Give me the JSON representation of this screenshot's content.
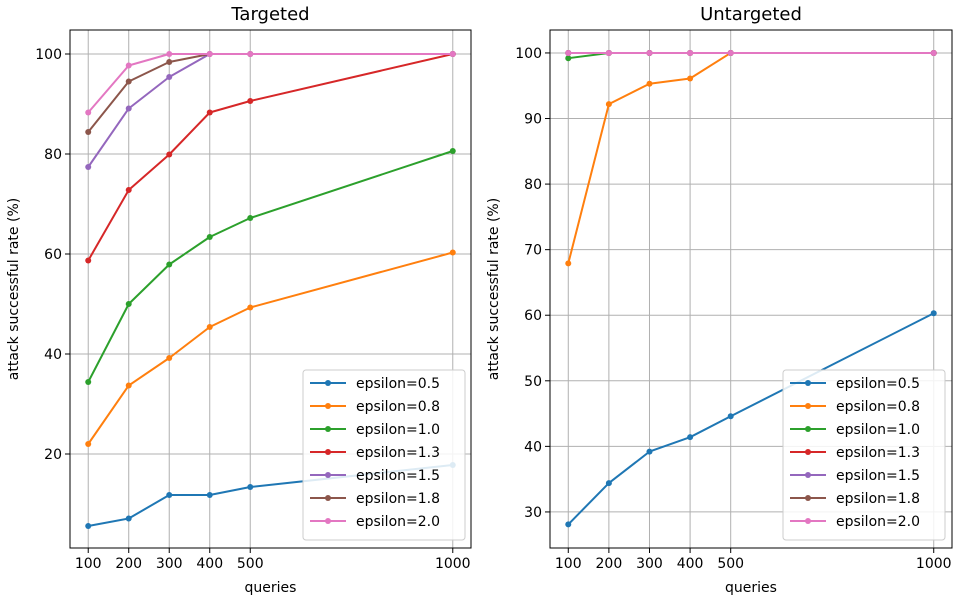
{
  "chart_data": [
    {
      "type": "line",
      "title": "Targeted",
      "xlabel": "queries",
      "ylabel": "attack successful rate (%)",
      "x": [
        100,
        200,
        300,
        400,
        500,
        1000
      ],
      "xticks": [
        100,
        200,
        300,
        400,
        500,
        1000
      ],
      "xlim": [
        55,
        1045
      ],
      "yticks": [
        20,
        40,
        60,
        80,
        100
      ],
      "ylim": [
        1.2,
        104.8
      ],
      "grid": true,
      "legend_position": "lower right",
      "series": [
        {
          "name": "epsilon=0.5",
          "color": "#1f77b4",
          "values": [
            5.6,
            7.1,
            11.8,
            11.8,
            13.4,
            17.8
          ]
        },
        {
          "name": "epsilon=0.8",
          "color": "#ff7f0e",
          "values": [
            22.0,
            33.7,
            39.2,
            45.4,
            49.3,
            60.3
          ]
        },
        {
          "name": "epsilon=1.0",
          "color": "#2ca02c",
          "values": [
            34.4,
            50.0,
            57.9,
            63.4,
            67.2,
            80.6
          ]
        },
        {
          "name": "epsilon=1.3",
          "color": "#d62728",
          "values": [
            58.7,
            72.8,
            79.9,
            88.3,
            90.6,
            100.0
          ]
        },
        {
          "name": "epsilon=1.5",
          "color": "#9467bd",
          "values": [
            77.4,
            89.1,
            95.4,
            100.0,
            100.0,
            100.0
          ]
        },
        {
          "name": "epsilon=1.8",
          "color": "#8c564b",
          "values": [
            84.4,
            94.5,
            98.4,
            100.0,
            100.0,
            100.0
          ]
        },
        {
          "name": "epsilon=2.0",
          "color": "#e377c2",
          "values": [
            88.3,
            97.7,
            100.0,
            100.0,
            100.0,
            100.0
          ]
        }
      ]
    },
    {
      "type": "line",
      "title": "Untargeted",
      "xlabel": "queries",
      "ylabel": "attack successful rate (%)",
      "x": [
        100,
        200,
        300,
        400,
        500,
        1000
      ],
      "xticks": [
        100,
        200,
        300,
        400,
        500,
        1000
      ],
      "xlim": [
        55,
        1045
      ],
      "yticks": [
        30,
        40,
        50,
        60,
        70,
        80,
        90,
        100
      ],
      "ylim": [
        24.5,
        103.5
      ],
      "grid": true,
      "legend_position": "lower right",
      "series": [
        {
          "name": "epsilon=0.5",
          "color": "#1f77b4",
          "values": [
            28.1,
            34.4,
            39.2,
            41.4,
            44.6,
            60.3
          ]
        },
        {
          "name": "epsilon=0.8",
          "color": "#ff7f0e",
          "values": [
            67.9,
            92.2,
            95.3,
            96.1,
            100.0,
            100.0
          ]
        },
        {
          "name": "epsilon=1.0",
          "color": "#2ca02c",
          "values": [
            99.2,
            100.0,
            100.0,
            100.0,
            100.0,
            100.0
          ]
        },
        {
          "name": "epsilon=1.3",
          "color": "#d62728",
          "values": [
            100.0,
            100.0,
            100.0,
            100.0,
            100.0,
            100.0
          ]
        },
        {
          "name": "epsilon=1.5",
          "color": "#9467bd",
          "values": [
            100.0,
            100.0,
            100.0,
            100.0,
            100.0,
            100.0
          ]
        },
        {
          "name": "epsilon=1.8",
          "color": "#8c564b",
          "values": [
            100.0,
            100.0,
            100.0,
            100.0,
            100.0,
            100.0
          ]
        },
        {
          "name": "epsilon=2.0",
          "color": "#e377c2",
          "values": [
            100.0,
            100.0,
            100.0,
            100.0,
            100.0,
            100.0
          ]
        }
      ]
    }
  ]
}
